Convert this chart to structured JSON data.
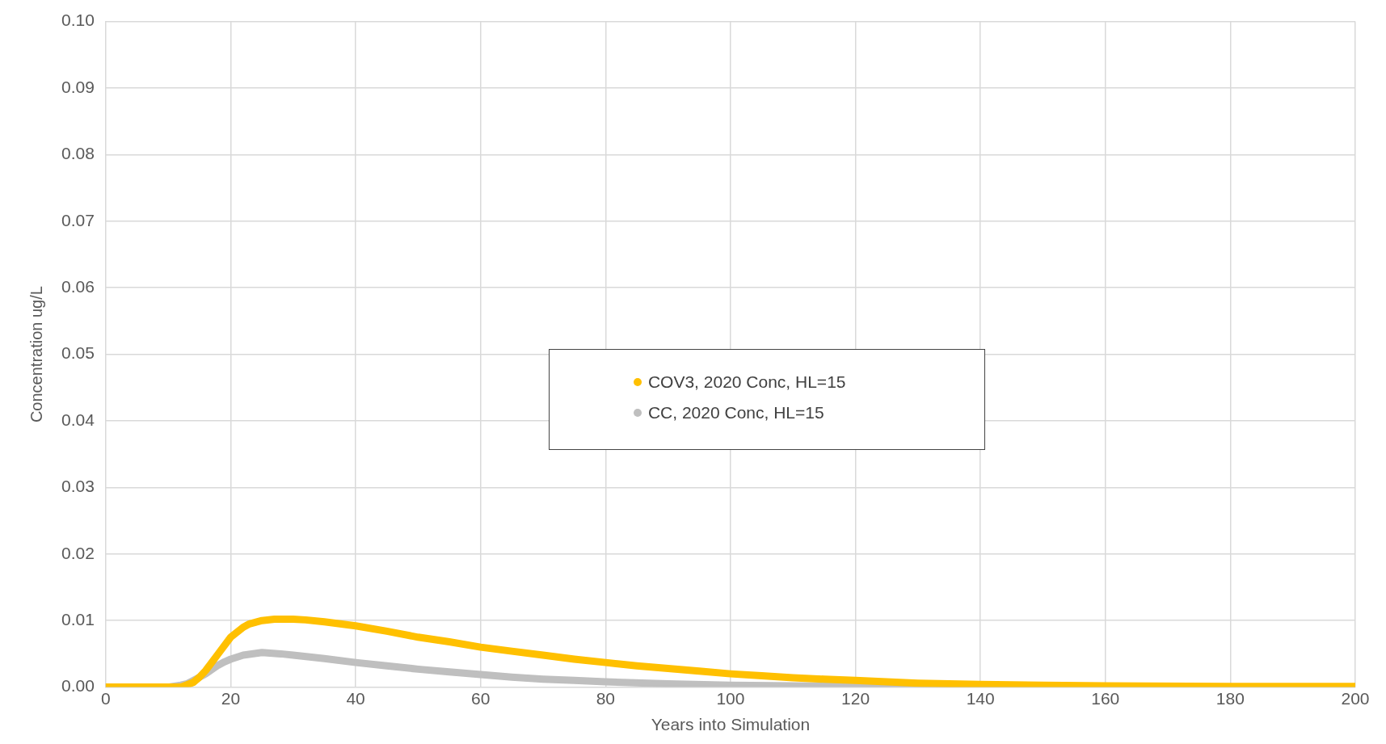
{
  "chart_data": {
    "type": "line",
    "xlabel": "Years into Simulation",
    "ylabel": "Concentration ug/L",
    "xlim": [
      0,
      200
    ],
    "xticks": [
      0,
      20,
      40,
      60,
      80,
      100,
      120,
      140,
      160,
      180,
      200
    ],
    "ylim": [
      0,
      0.1
    ],
    "yticks": [
      {
        "value": 0,
        "label": "0.00"
      },
      {
        "value": 0.01,
        "label": "0.01"
      },
      {
        "value": 0.02,
        "label": "0.02"
      },
      {
        "value": 0.03,
        "label": "0.03"
      },
      {
        "value": 0.04,
        "label": "0.04"
      },
      {
        "value": 0.05,
        "label": "0.05"
      },
      {
        "value": 0.06,
        "label": "0.06"
      },
      {
        "value": 0.07,
        "label": "0.07"
      },
      {
        "value": 0.08,
        "label": "0.08"
      },
      {
        "value": 0.09,
        "label": "0.09"
      },
      {
        "value": 0.1,
        "label": "0.10"
      }
    ],
    "grid": true,
    "legend": "center",
    "marker": "none",
    "series": [
      {
        "name": "COV3, 2020 Conc, HL=15",
        "color": "#ffc000",
        "x": [
          0,
          5,
          10,
          12,
          14,
          15,
          16,
          18,
          20,
          22,
          23,
          25,
          27,
          30,
          32,
          35,
          40,
          45,
          50,
          55,
          60,
          65,
          70,
          75,
          80,
          85,
          90,
          95,
          100,
          105,
          110,
          115,
          120,
          130,
          140,
          150,
          160,
          180,
          200
        ],
        "values": [
          0,
          0,
          0,
          0,
          0.0007,
          0.0015,
          0.0025,
          0.005,
          0.0075,
          0.009,
          0.0095,
          0.01,
          0.0102,
          0.0102,
          0.0101,
          0.0098,
          0.0092,
          0.0084,
          0.0075,
          0.0068,
          0.006,
          0.0054,
          0.0048,
          0.0042,
          0.0037,
          0.0032,
          0.0028,
          0.0024,
          0.002,
          0.0017,
          0.0014,
          0.0012,
          0.001,
          0.0006,
          0.0004,
          0.0003,
          0.0002,
          0.0001,
          0.0001
        ]
      },
      {
        "name": "CC, 2020 Conc, HL=15",
        "color": "#bfbfbf",
        "x": [
          0,
          5,
          10,
          12,
          13,
          14,
          16,
          18,
          19,
          20,
          22,
          25,
          28,
          30,
          35,
          40,
          45,
          50,
          55,
          60,
          65,
          70,
          75,
          80,
          90,
          100,
          110,
          120,
          140,
          160,
          180,
          200
        ],
        "values": [
          0,
          0,
          0,
          0.0003,
          0.0005,
          0.001,
          0.002,
          0.0033,
          0.0038,
          0.0042,
          0.0048,
          0.0052,
          0.005,
          0.0048,
          0.0043,
          0.0037,
          0.0032,
          0.0027,
          0.0023,
          0.0019,
          0.0015,
          0.0012,
          0.001,
          0.0008,
          0.0005,
          0.0003,
          0.0002,
          0.0001,
          0.0001,
          0,
          0,
          0
        ]
      }
    ]
  }
}
